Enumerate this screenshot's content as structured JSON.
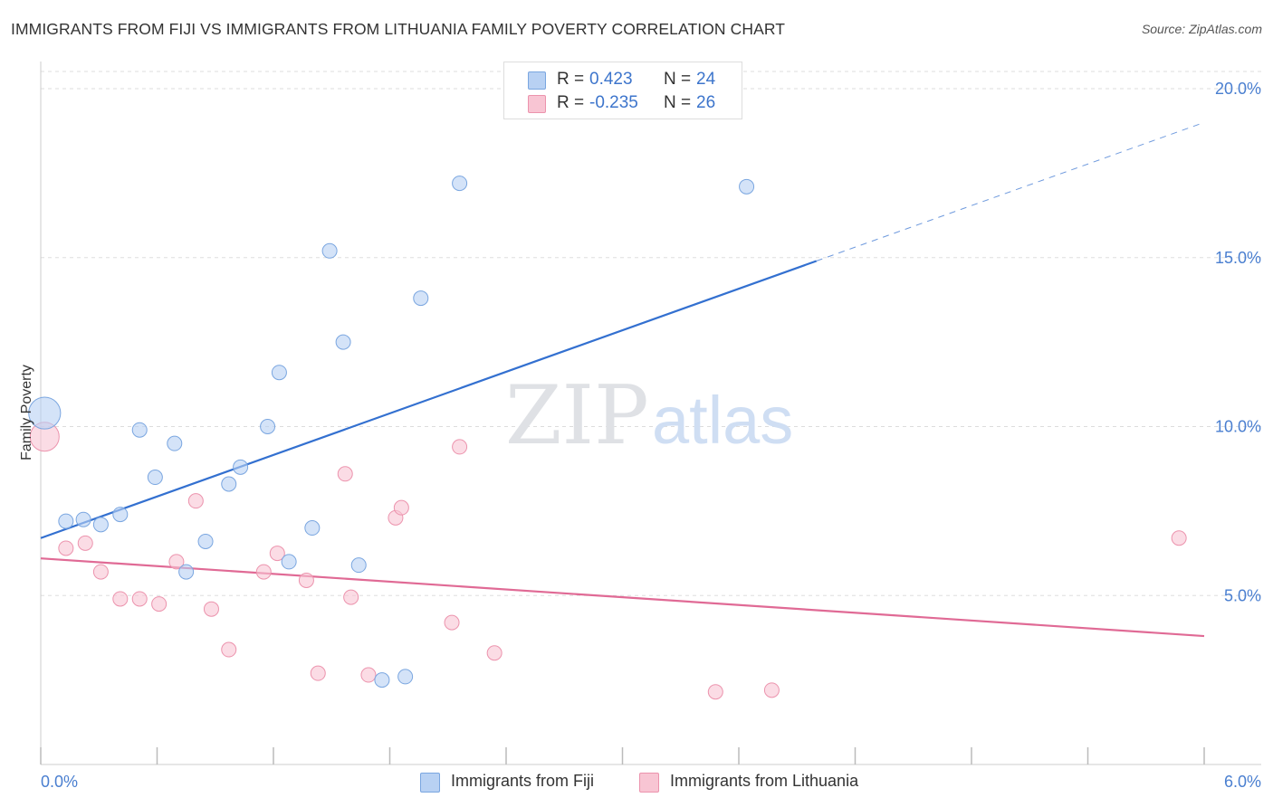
{
  "title": "IMMIGRANTS FROM FIJI VS IMMIGRANTS FROM LITHUANIA FAMILY POVERTY CORRELATION CHART",
  "source": "Source: ZipAtlas.com",
  "watermark": {
    "zip": "ZIP",
    "atlas": "atlas"
  },
  "legend": {
    "rows": [
      {
        "r_label": "R =",
        "r_value": "0.423",
        "n_label": "N =",
        "n_value": "24"
      },
      {
        "r_label": "R =",
        "r_value": "-0.235",
        "n_label": "N =",
        "n_value": "26"
      }
    ]
  },
  "bottom_legend": [
    "Immigrants from Fiji",
    "Immigrants from Lithuania"
  ],
  "colors": {
    "fiji_fill": "#b8d1f3",
    "fiji_stroke": "#7aa6e0",
    "fiji_line": "#3370d0",
    "lith_fill": "#f8c5d3",
    "lith_stroke": "#ec93ad",
    "lith_line": "#e06a95",
    "grid": "#dddddd",
    "tick_text": "#4a7fd0"
  },
  "chart_data": {
    "type": "scatter",
    "title": "IMMIGRANTS FROM FIJI VS IMMIGRANTS FROM LITHUANIA FAMILY POVERTY CORRELATION CHART",
    "xlabel": "",
    "ylabel": "Family Poverty",
    "xlim": [
      0,
      6
    ],
    "ylim": [
      0,
      20
    ],
    "x_tick_labels": [
      "0.0%",
      "6.0%"
    ],
    "y_ticks": [
      5,
      10,
      15,
      20
    ],
    "y_tick_labels": [
      "5.0%",
      "10.0%",
      "15.0%",
      "20.0%"
    ],
    "grid": true,
    "legend_position": "top-center",
    "series": [
      {
        "name": "Immigrants from Fiji",
        "r": 0.423,
        "n": 24,
        "trend": {
          "x0": 0,
          "y0": 6.7,
          "x1": 4.0,
          "y1": 14.9,
          "dashed_to_x": 6.0,
          "dashed_to_y": 19.0
        },
        "points": [
          [
            0.02,
            10.4,
            2.2
          ],
          [
            0.13,
            7.2,
            1
          ],
          [
            0.22,
            7.25,
            1
          ],
          [
            0.31,
            7.1,
            1
          ],
          [
            0.41,
            7.4,
            1
          ],
          [
            0.51,
            9.9,
            1
          ],
          [
            0.59,
            8.5,
            1
          ],
          [
            0.69,
            9.5,
            1
          ],
          [
            0.75,
            5.7,
            1
          ],
          [
            0.85,
            6.6,
            1
          ],
          [
            0.97,
            8.3,
            1
          ],
          [
            1.03,
            8.8,
            1
          ],
          [
            1.17,
            10.0,
            1
          ],
          [
            1.23,
            11.6,
            1
          ],
          [
            1.28,
            6.0,
            1
          ],
          [
            1.4,
            7.0,
            1
          ],
          [
            1.49,
            15.2,
            1
          ],
          [
            1.56,
            12.5,
            1
          ],
          [
            1.64,
            5.9,
            1
          ],
          [
            1.76,
            2.5,
            1
          ],
          [
            1.88,
            2.6,
            1
          ],
          [
            1.96,
            13.8,
            1
          ],
          [
            2.16,
            17.2,
            1
          ],
          [
            3.64,
            17.1,
            1
          ]
        ]
      },
      {
        "name": "Immigrants from Lithuania",
        "r": -0.235,
        "n": 26,
        "trend": {
          "x0": 0,
          "y0": 6.1,
          "x1": 6.0,
          "y1": 3.8
        },
        "points": [
          [
            0.02,
            9.7,
            2.0
          ],
          [
            0.13,
            6.4,
            1
          ],
          [
            0.23,
            6.55,
            1
          ],
          [
            0.31,
            5.7,
            1
          ],
          [
            0.41,
            4.9,
            1
          ],
          [
            0.51,
            4.9,
            1
          ],
          [
            0.61,
            4.75,
            1
          ],
          [
            0.7,
            6.0,
            1
          ],
          [
            0.8,
            7.8,
            1
          ],
          [
            0.88,
            4.6,
            1
          ],
          [
            0.97,
            3.4,
            1
          ],
          [
            1.15,
            5.7,
            1
          ],
          [
            1.22,
            6.25,
            1
          ],
          [
            1.37,
            5.45,
            1
          ],
          [
            1.43,
            2.7,
            1
          ],
          [
            1.57,
            8.6,
            1
          ],
          [
            1.6,
            4.95,
            1
          ],
          [
            1.69,
            2.65,
            1
          ],
          [
            1.83,
            7.3,
            1
          ],
          [
            1.86,
            7.6,
            1
          ],
          [
            2.12,
            4.2,
            1
          ],
          [
            2.16,
            9.4,
            1
          ],
          [
            2.34,
            3.3,
            1
          ],
          [
            3.48,
            2.15,
            1
          ],
          [
            3.77,
            2.2,
            1
          ],
          [
            5.87,
            6.7,
            1
          ]
        ]
      }
    ]
  }
}
